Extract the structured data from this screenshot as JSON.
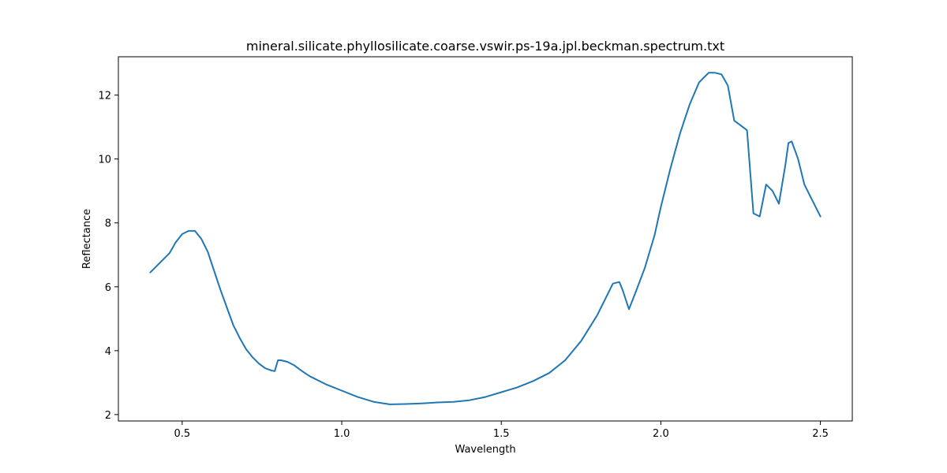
{
  "chart_data": {
    "type": "line",
    "title": "mineral.silicate.phyllosilicate.coarse.vswir.ps-19a.jpl.beckman.spectrum.txt",
    "xlabel": "Wavelength",
    "ylabel": "Reflectance",
    "xlim": [
      0.3,
      2.6
    ],
    "ylim": [
      1.8,
      13.2
    ],
    "xticks": [
      0.5,
      1.0,
      1.5,
      2.0,
      2.5
    ],
    "xtick_labels": [
      "0.5",
      "1.0",
      "1.5",
      "2.0",
      "2.5"
    ],
    "yticks": [
      2,
      4,
      6,
      8,
      10,
      12
    ],
    "ytick_labels": [
      "2",
      "4",
      "6",
      "8",
      "10",
      "12"
    ],
    "grid": false,
    "series": [
      {
        "color": "#1f77b4",
        "x": [
          0.4,
          0.42,
          0.44,
          0.46,
          0.48,
          0.5,
          0.52,
          0.54,
          0.56,
          0.58,
          0.6,
          0.62,
          0.64,
          0.66,
          0.68,
          0.7,
          0.72,
          0.74,
          0.76,
          0.78,
          0.79,
          0.8,
          0.81,
          0.83,
          0.85,
          0.87,
          0.9,
          0.95,
          1.0,
          1.05,
          1.1,
          1.15,
          1.2,
          1.25,
          1.3,
          1.35,
          1.4,
          1.45,
          1.5,
          1.55,
          1.6,
          1.65,
          1.7,
          1.75,
          1.8,
          1.85,
          1.87,
          1.88,
          1.9,
          1.92,
          1.95,
          1.98,
          2.0,
          2.03,
          2.06,
          2.09,
          2.12,
          2.15,
          2.17,
          2.19,
          2.21,
          2.23,
          2.25,
          2.27,
          2.29,
          2.31,
          2.33,
          2.35,
          2.37,
          2.39,
          2.4,
          2.41,
          2.43,
          2.45,
          2.47,
          2.5
        ],
        "y": [
          6.45,
          6.65,
          6.85,
          7.05,
          7.4,
          7.65,
          7.75,
          7.75,
          7.5,
          7.1,
          6.5,
          5.9,
          5.35,
          4.8,
          4.4,
          4.05,
          3.8,
          3.6,
          3.45,
          3.38,
          3.36,
          3.7,
          3.7,
          3.65,
          3.55,
          3.4,
          3.2,
          2.95,
          2.75,
          2.55,
          2.4,
          2.32,
          2.33,
          2.35,
          2.38,
          2.4,
          2.45,
          2.55,
          2.7,
          2.85,
          3.05,
          3.3,
          3.7,
          4.3,
          5.1,
          6.1,
          6.15,
          5.9,
          5.3,
          5.8,
          6.6,
          7.6,
          8.5,
          9.7,
          10.8,
          11.7,
          12.4,
          12.7,
          12.7,
          12.65,
          12.3,
          11.2,
          11.05,
          10.9,
          8.3,
          8.2,
          9.2,
          9.0,
          8.6,
          9.8,
          10.5,
          10.55,
          10.0,
          9.2,
          8.8,
          8.2
        ]
      }
    ]
  }
}
